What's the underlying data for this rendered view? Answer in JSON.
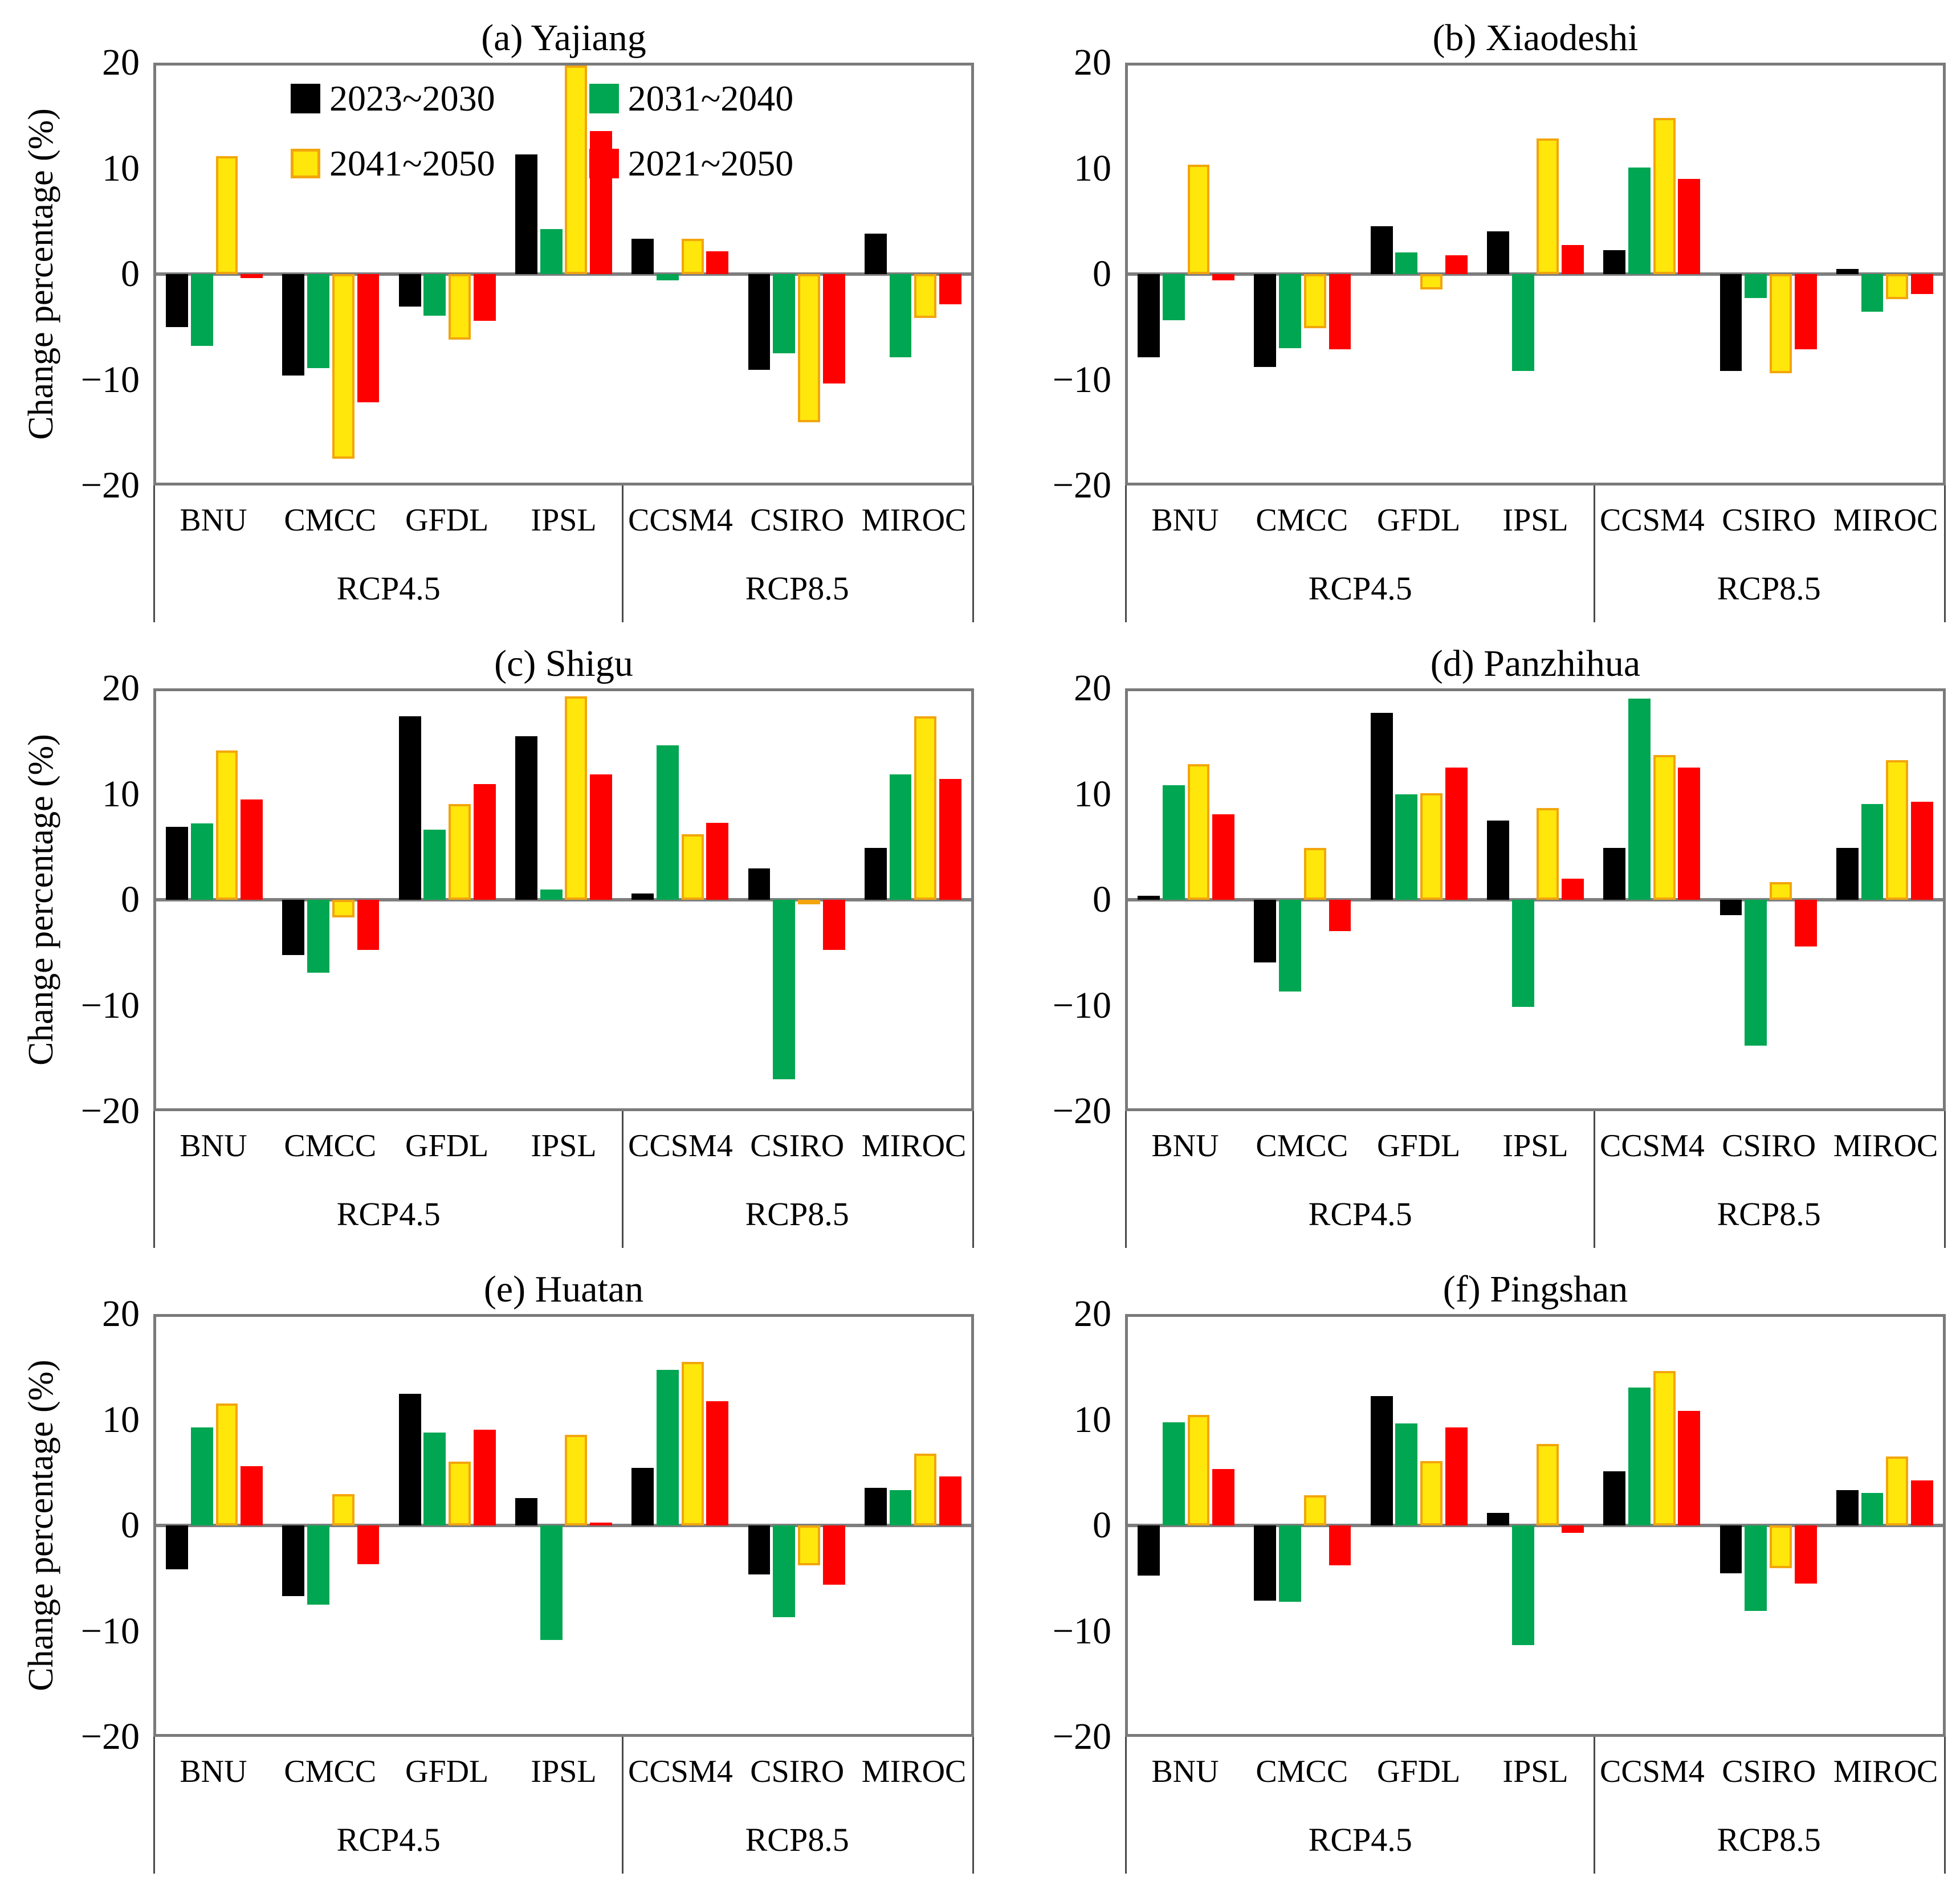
{
  "figure": {
    "ylabel": "Change percentage (%)",
    "ytick_labels": [
      "20",
      "10",
      "0",
      "−10",
      "−20"
    ],
    "ytick_values": [
      20,
      10,
      0,
      -10,
      -20
    ],
    "ylim": [
      -20,
      20
    ],
    "legend_position": "inside-top of panel (a), two columns",
    "legend": [
      {
        "label": "2023~2030",
        "color": "#000000"
      },
      {
        "label": "2031~2040",
        "color": "#00a651"
      },
      {
        "label": "2041~2050",
        "color": "#ffe60b",
        "border": "#f2a50c"
      },
      {
        "label": "2021~2050",
        "color": "#fe0000"
      }
    ],
    "frame_color": "#7a7a7a",
    "zero_line_color": "#7e7e7e"
  },
  "chart_data": [
    {
      "type": "bar",
      "panel": "a",
      "title": "(a) Yajiang",
      "ylabel": "Change percentage (%)",
      "ylim": [
        -20,
        20
      ],
      "yticks": [
        20,
        10,
        0,
        -10,
        -20
      ],
      "grid": false,
      "categories": [
        "BNU",
        "CMCC",
        "GFDL",
        "IPSL",
        "CCSM4",
        "CSIRO",
        "MIROC"
      ],
      "scenarios": [
        {
          "label": "RCP4.5",
          "categories": [
            "BNU",
            "CMCC",
            "GFDL",
            "IPSL"
          ]
        },
        {
          "label": "RCP8.5",
          "categories": [
            "CCSM4",
            "CSIRO",
            "MIROC"
          ]
        }
      ],
      "series": [
        {
          "name": "2023~2030",
          "color": "#000000",
          "values": [
            -5.1,
            -9.7,
            -3.1,
            11.5,
            3.4,
            -9.2,
            3.9
          ]
        },
        {
          "name": "2031~2040",
          "color": "#00a651",
          "values": [
            -6.9,
            -9.0,
            -4.0,
            4.3,
            -0.6,
            -7.6,
            -8.0
          ]
        },
        {
          "name": "2041~2050",
          "color": "#ffe60b",
          "border": "#f2a50c",
          "values": [
            11.3,
            -17.7,
            -6.3,
            20.0,
            3.4,
            -14.2,
            -4.2
          ]
        },
        {
          "name": "2021~2050",
          "color": "#fe0000",
          "values": [
            -0.4,
            -12.3,
            -4.5,
            13.7,
            2.2,
            -10.5,
            -2.9
          ]
        }
      ]
    },
    {
      "type": "bar",
      "panel": "b",
      "title": "(b) Xiaodeshi",
      "ylabel": "Change percentage (%)",
      "ylim": [
        -20,
        20
      ],
      "yticks": [
        20,
        10,
        0,
        -10,
        -20
      ],
      "grid": false,
      "categories": [
        "BNU",
        "CMCC",
        "GFDL",
        "IPSL",
        "CCSM4",
        "CSIRO",
        "MIROC"
      ],
      "scenarios": [
        {
          "label": "RCP4.5",
          "categories": [
            "BNU",
            "CMCC",
            "GFDL",
            "IPSL"
          ]
        },
        {
          "label": "RCP8.5",
          "categories": [
            "CCSM4",
            "CSIRO",
            "MIROC"
          ]
        }
      ],
      "series": [
        {
          "name": "2023~2030",
          "color": "#000000",
          "values": [
            -8.0,
            -8.9,
            4.6,
            4.1,
            2.3,
            -9.3,
            0.5
          ]
        },
        {
          "name": "2031~2040",
          "color": "#00a651",
          "values": [
            -4.4,
            -7.1,
            2.1,
            -9.3,
            10.2,
            -2.3,
            -3.6
          ]
        },
        {
          "name": "2041~2050",
          "color": "#ffe60b",
          "border": "#f2a50c",
          "values": [
            10.5,
            -5.2,
            -1.5,
            13.0,
            15.0,
            -9.5,
            -2.4
          ]
        },
        {
          "name": "2021~2050",
          "color": "#fe0000",
          "values": [
            -0.6,
            -7.2,
            1.8,
            2.8,
            9.1,
            -7.2,
            -1.9
          ]
        }
      ]
    },
    {
      "type": "bar",
      "panel": "c",
      "title": "(c) Shigu",
      "ylabel": "Change percentage (%)",
      "ylim": [
        -20,
        20
      ],
      "yticks": [
        20,
        10,
        0,
        -10,
        -20
      ],
      "grid": false,
      "categories": [
        "BNU",
        "CMCC",
        "GFDL",
        "IPSL",
        "CCSM4",
        "CSIRO",
        "MIROC"
      ],
      "scenarios": [
        {
          "label": "RCP4.5",
          "categories": [
            "BNU",
            "CMCC",
            "GFDL",
            "IPSL"
          ]
        },
        {
          "label": "RCP8.5",
          "categories": [
            "CCSM4",
            "CSIRO",
            "MIROC"
          ]
        }
      ],
      "series": [
        {
          "name": "2023~2030",
          "color": "#000000",
          "values": [
            7.0,
            -5.3,
            17.6,
            15.7,
            0.6,
            3.0,
            5.0
          ]
        },
        {
          "name": "2031~2040",
          "color": "#00a651",
          "values": [
            7.3,
            -7.0,
            6.7,
            1.0,
            14.8,
            -17.2,
            12.0
          ]
        },
        {
          "name": "2041~2050",
          "color": "#ffe60b",
          "border": "#f2a50c",
          "values": [
            14.3,
            -1.7,
            9.2,
            19.5,
            6.3,
            -0.3,
            17.6
          ]
        },
        {
          "name": "2021~2050",
          "color": "#fe0000",
          "values": [
            9.6,
            -4.8,
            11.1,
            12.0,
            7.4,
            -4.8,
            11.6
          ]
        }
      ]
    },
    {
      "type": "bar",
      "panel": "d",
      "title": "(d) Panzhihua",
      "ylabel": "Change percentage (%)",
      "ylim": [
        -20,
        20
      ],
      "yticks": [
        20,
        10,
        0,
        -10,
        -20
      ],
      "grid": false,
      "categories": [
        "BNU",
        "CMCC",
        "GFDL",
        "IPSL",
        "CCSM4",
        "CSIRO",
        "MIROC"
      ],
      "scenarios": [
        {
          "label": "RCP4.5",
          "categories": [
            "BNU",
            "CMCC",
            "GFDL",
            "IPSL"
          ]
        },
        {
          "label": "RCP8.5",
          "categories": [
            "CCSM4",
            "CSIRO",
            "MIROC"
          ]
        }
      ],
      "series": [
        {
          "name": "2023~2030",
          "color": "#000000",
          "values": [
            0.4,
            -6.0,
            17.9,
            7.6,
            5.0,
            -1.5,
            5.0
          ]
        },
        {
          "name": "2031~2040",
          "color": "#00a651",
          "values": [
            11.0,
            -8.8,
            10.1,
            -10.3,
            19.3,
            -14.0,
            9.2
          ]
        },
        {
          "name": "2041~2050",
          "color": "#ffe60b",
          "border": "#f2a50c",
          "values": [
            13.0,
            5.0,
            10.2,
            8.8,
            13.9,
            1.7,
            13.4
          ]
        },
        {
          "name": "2021~2050",
          "color": "#fe0000",
          "values": [
            8.2,
            -3.0,
            12.7,
            2.0,
            12.7,
            -4.5,
            9.4
          ]
        }
      ]
    },
    {
      "type": "bar",
      "panel": "e",
      "title": "(e) Huatan",
      "ylabel": "Change percentage (%)",
      "ylim": [
        -20,
        20
      ],
      "yticks": [
        20,
        10,
        0,
        -10,
        -20
      ],
      "grid": false,
      "categories": [
        "BNU",
        "CMCC",
        "GFDL",
        "IPSL",
        "CCSM4",
        "CSIRO",
        "MIROC"
      ],
      "scenarios": [
        {
          "label": "RCP4.5",
          "categories": [
            "BNU",
            "CMCC",
            "GFDL",
            "IPSL"
          ]
        },
        {
          "label": "RCP8.5",
          "categories": [
            "CCSM4",
            "CSIRO",
            "MIROC"
          ]
        }
      ],
      "series": [
        {
          "name": "2023~2030",
          "color": "#000000",
          "values": [
            -4.2,
            -6.8,
            12.6,
            2.6,
            5.5,
            -4.7,
            3.6
          ]
        },
        {
          "name": "2031~2040",
          "color": "#00a651",
          "values": [
            9.4,
            -7.6,
            8.9,
            -11.0,
            14.9,
            -8.8,
            3.4
          ]
        },
        {
          "name": "2041~2050",
          "color": "#ffe60b",
          "border": "#f2a50c",
          "values": [
            11.7,
            3.0,
            6.1,
            8.7,
            15.7,
            -3.8,
            6.9
          ]
        },
        {
          "name": "2021~2050",
          "color": "#fe0000",
          "values": [
            5.7,
            -3.7,
            9.2,
            0.3,
            11.9,
            -5.7,
            4.7
          ]
        }
      ]
    },
    {
      "type": "bar",
      "panel": "f",
      "title": "(f) Pingshan",
      "ylabel": "Change percentage (%)",
      "ylim": [
        -20,
        20
      ],
      "yticks": [
        20,
        10,
        0,
        -10,
        -20
      ],
      "grid": false,
      "categories": [
        "BNU",
        "CMCC",
        "GFDL",
        "IPSL",
        "CCSM4",
        "CSIRO",
        "MIROC"
      ],
      "scenarios": [
        {
          "label": "RCP4.5",
          "categories": [
            "BNU",
            "CMCC",
            "GFDL",
            "IPSL"
          ]
        },
        {
          "label": "RCP8.5",
          "categories": [
            "CCSM4",
            "CSIRO",
            "MIROC"
          ]
        }
      ],
      "series": [
        {
          "name": "2023~2030",
          "color": "#000000",
          "values": [
            -4.8,
            -7.2,
            12.4,
            1.2,
            5.2,
            -4.6,
            3.4
          ]
        },
        {
          "name": "2031~2040",
          "color": "#00a651",
          "values": [
            9.9,
            -7.3,
            9.8,
            -11.5,
            13.2,
            -8.2,
            3.1
          ]
        },
        {
          "name": "2041~2050",
          "color": "#ffe60b",
          "border": "#f2a50c",
          "values": [
            10.6,
            2.9,
            6.2,
            7.8,
            14.8,
            -4.1,
            6.6
          ]
        },
        {
          "name": "2021~2050",
          "color": "#fe0000",
          "values": [
            5.4,
            -3.8,
            9.4,
            -0.7,
            11.0,
            -5.6,
            4.3
          ]
        }
      ]
    }
  ]
}
